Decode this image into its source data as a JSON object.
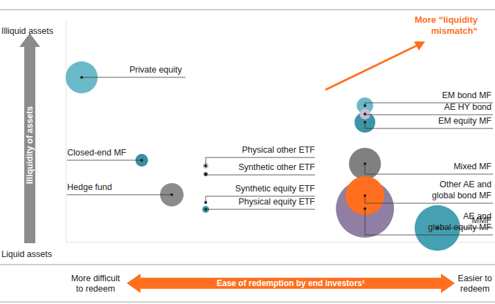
{
  "chart_data": {
    "type": "bubble",
    "y_label": "Illiquidity of assets",
    "y_high_label": "Illiquid assets",
    "y_low_label": "Liquid assets",
    "x_label": "Ease of redemption by end investors¹",
    "x_low_label": "More difficult\nto redeem",
    "x_high_label": "Easier to\nredeem",
    "annotation": "More “liquidity\nmismatch“",
    "xlim": [
      0,
      100
    ],
    "ylim": [
      0,
      100
    ],
    "grid": false,
    "tick_labels": false,
    "points": [
      {
        "name": "Private equity",
        "x": 3.7,
        "y": 74.4,
        "size": 52,
        "color": "#6cb9c9"
      },
      {
        "name": "Closed-end MF",
        "x": 17.7,
        "y": 36.9,
        "size": 8,
        "color": "#3b8f9e"
      },
      {
        "name": "Hedge fund",
        "x": 24.7,
        "y": 21.3,
        "size": 28,
        "color": "#8c8c8c"
      },
      {
        "name": "Physical other ETF",
        "x": 32.6,
        "y": 34.4,
        "size": 1.6,
        "color": "#c7b6cf"
      },
      {
        "name": "Synthetic other ETF",
        "x": 32.6,
        "y": 30.6,
        "size": 0.9,
        "color": "#555555"
      },
      {
        "name": "Synthetic equity ETF",
        "x": 32.6,
        "y": 17.8,
        "size": 0.4,
        "color": "#3a8f9e"
      },
      {
        "name": "Physical equity ETF",
        "x": 32.6,
        "y": 14.7,
        "size": 2.4,
        "color": "#3b95a6"
      },
      {
        "name": "EM bond MF",
        "x": 69.7,
        "y": 61.6,
        "size": 14,
        "color": "#6cb9c9"
      },
      {
        "name": "EM equity MF",
        "x": 69.7,
        "y": 54.1,
        "size": 22,
        "color": "#3b95a6"
      },
      {
        "name": "AE HY bond",
        "x": 69.7,
        "y": 57.8,
        "size": 6,
        "color": "#c9bcd2"
      },
      {
        "name": "Mixed MF",
        "x": 69.7,
        "y": 35.3,
        "size": 52,
        "color": "#808080"
      },
      {
        "name": "AE and\nglobal equity MF",
        "x": 69.7,
        "y": 15.0,
        "size": 172,
        "color": "#8e7fa3"
      },
      {
        "name": "Other AE and\nglobal bond MF",
        "x": 69.7,
        "y": 20.9,
        "size": 77,
        "color": "#ff6f1f"
      },
      {
        "name": "MMF",
        "x": 86.6,
        "y": 6.25,
        "size": 106,
        "color": "#45a0b2"
      }
    ]
  }
}
